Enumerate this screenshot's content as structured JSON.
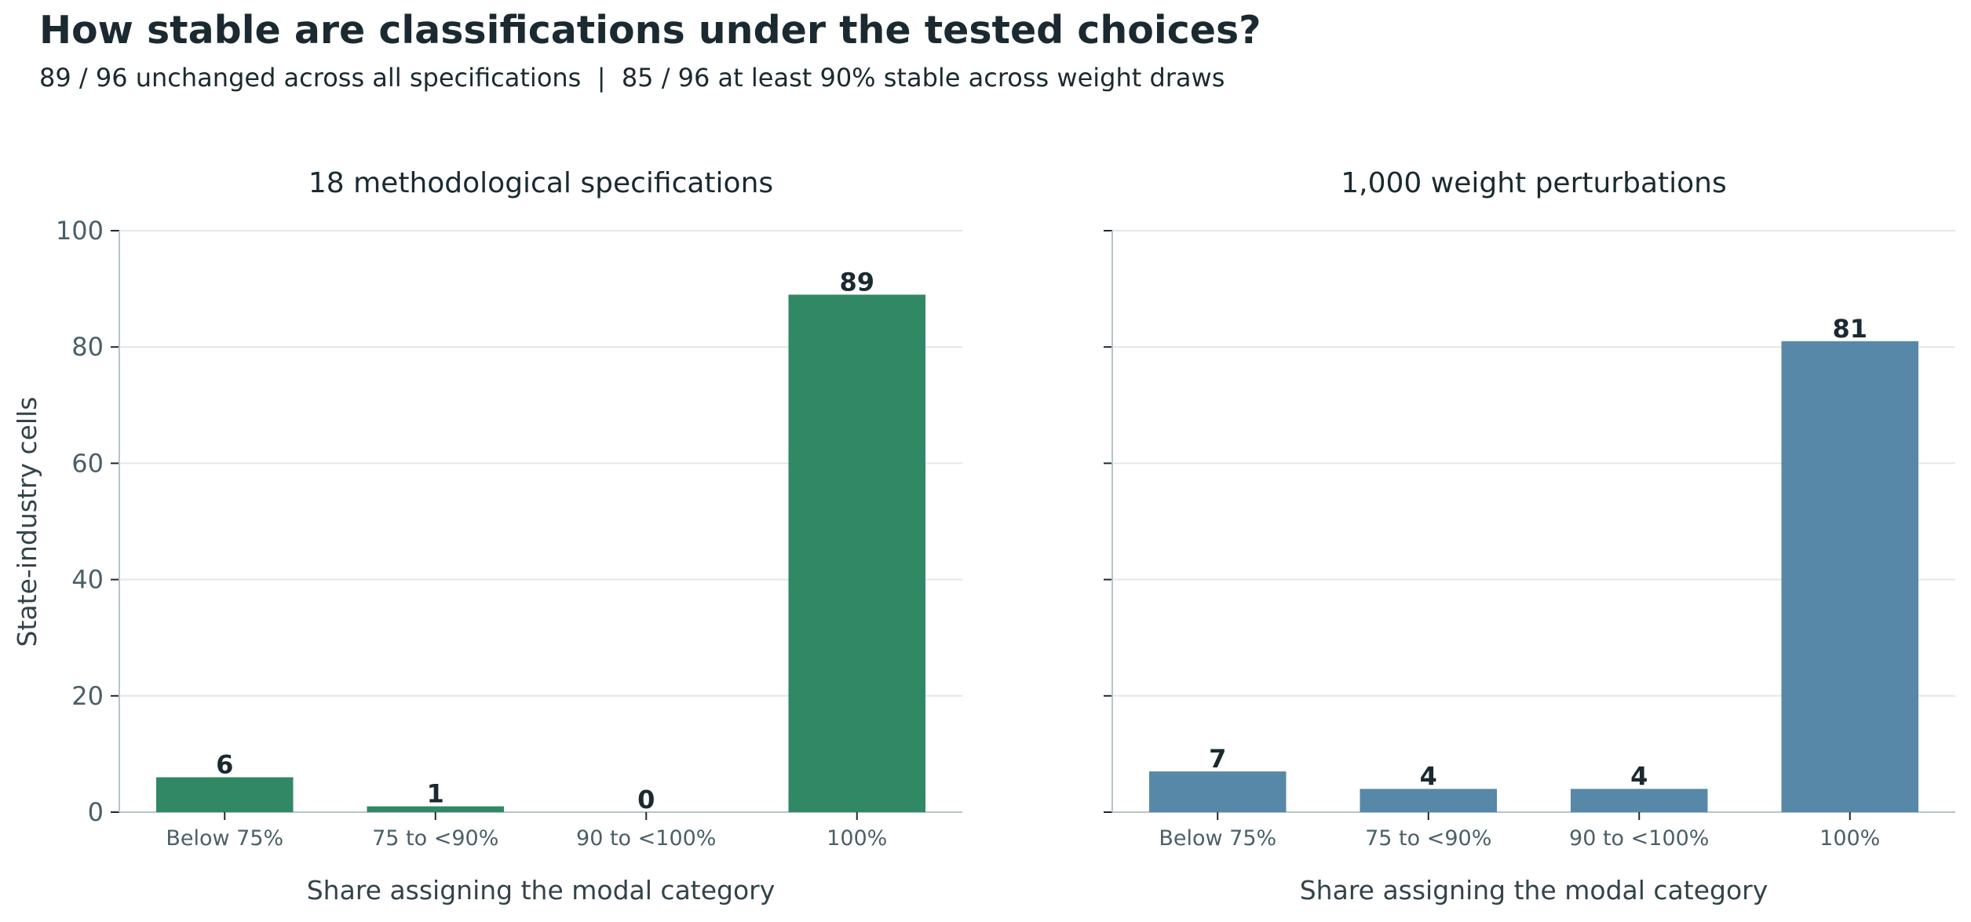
{
  "title": "How stable are classifications under the tested choices?",
  "subtitle": "89 / 96 unchanged across all specifications  |  85 / 96 at least 90% stable across weight draws",
  "colors": {
    "panel_1_bar": "#318864",
    "panel_2_bar": "#5788a8",
    "grid": "#e3e7ea",
    "axis": "#b8c3c8",
    "text_dark": "#1b2a30",
    "text_muted": "#4b5f68"
  },
  "chart_data": [
    {
      "type": "bar",
      "title": "18 methodological specifications",
      "xlabel": "Share assigning the modal category",
      "ylabel": "State-industry cells",
      "categories": [
        "Below 75%",
        "75 to <90%",
        "90 to <100%",
        "100%"
      ],
      "values": [
        6,
        1,
        0,
        89
      ],
      "data_labels": [
        "6",
        "1",
        "0",
        "89"
      ],
      "ylim": [
        0,
        100
      ],
      "yticks": [
        0,
        20,
        40,
        60,
        80,
        100
      ],
      "grid": "horizontal",
      "color": "#318864"
    },
    {
      "type": "bar",
      "title": "1,000 weight perturbations",
      "xlabel": "Share assigning the modal category",
      "ylabel": "",
      "categories": [
        "Below 75%",
        "75 to <90%",
        "90 to <100%",
        "100%"
      ],
      "values": [
        7,
        4,
        4,
        81
      ],
      "data_labels": [
        "7",
        "4",
        "4",
        "81"
      ],
      "ylim": [
        0,
        100
      ],
      "yticks": [
        0,
        20,
        40,
        60,
        80,
        100
      ],
      "grid": "horizontal",
      "color": "#5788a8"
    }
  ]
}
